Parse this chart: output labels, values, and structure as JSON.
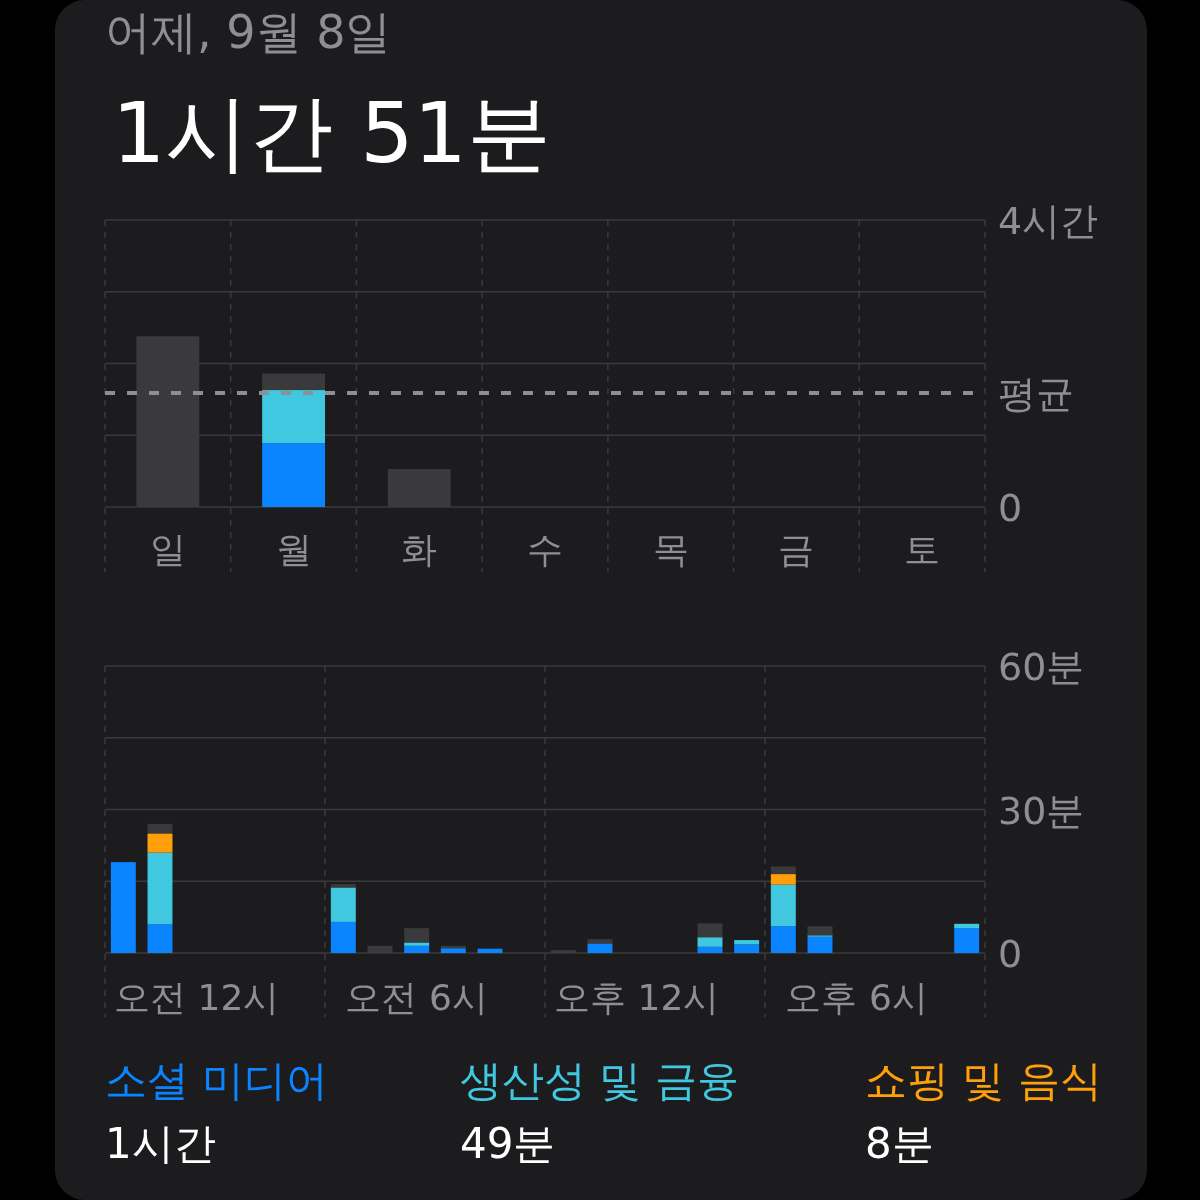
{
  "chart_data": [
    {
      "type": "bar",
      "subtitle": "어제, 9월 8일",
      "title": "1시간 51분",
      "stacked": true,
      "grid": true,
      "categories": [
        "일",
        "월",
        "화",
        "수",
        "목",
        "금",
        "토"
      ],
      "series": [
        {
          "color": "#0a84ff",
          "values": [
            null,
            0.89,
            null,
            null,
            null,
            null,
            null
          ]
        },
        {
          "color": "#40c8e0",
          "values": [
            null,
            0.74,
            null,
            null,
            null,
            null,
            null
          ]
        },
        {
          "color": "#3a3a3c",
          "values": [
            2.38,
            0.23,
            0.53,
            null,
            null,
            null,
            null
          ]
        }
      ],
      "ylim": [
        0,
        4
      ],
      "yticks": [
        0,
        {
          "value": 1,
          "label": null
        },
        {
          "value": 2,
          "label": null
        },
        {
          "value": 3,
          "label": null
        },
        {
          "value": 4,
          "label": "4시간"
        }
      ],
      "ref_lines": [
        {
          "axis": "y",
          "value": 1.59,
          "label": "평균",
          "color": "#8e8e93",
          "line_style": "dashed"
        }
      ]
    },
    {
      "type": "bar",
      "stacked": true,
      "grid": true,
      "legend": "bottom",
      "categories": [
        null,
        null,
        "오전 12시",
        null,
        null,
        null,
        null,
        null,
        "오전 6시",
        null,
        null,
        null,
        null,
        null,
        "오후 12시",
        null,
        null,
        null,
        null,
        null,
        "오후 6시",
        null,
        null,
        null
      ],
      "series": [
        {
          "name": "소셜 미디어",
          "color": "#0a84ff",
          "values": [
            19,
            6,
            null,
            null,
            null,
            null,
            6.5,
            null,
            1.5,
            1.0,
            0.9,
            null,
            null,
            2.0,
            null,
            null,
            1.3,
            1.8,
            5.6,
            3.4,
            null,
            null,
            null,
            5.2
          ]
        },
        {
          "name": "생산성 및 금융",
          "color": "#40c8e0",
          "values": [
            null,
            15,
            null,
            null,
            null,
            null,
            7.2,
            null,
            0.7,
            null,
            null,
            null,
            null,
            null,
            null,
            null,
            2.0,
            0.9,
            8.7,
            0.3,
            null,
            null,
            null,
            0.9
          ]
        },
        {
          "name": "쇼핑 및 음식",
          "color": "#ff9f0a",
          "values": [
            null,
            4,
            null,
            null,
            null,
            null,
            null,
            null,
            null,
            null,
            null,
            null,
            null,
            null,
            null,
            null,
            null,
            null,
            2.2,
            null,
            null,
            null,
            null,
            null
          ]
        },
        {
          "color": "#3a3a3c",
          "values": [
            null,
            2,
            null,
            null,
            null,
            null,
            0.7,
            1.5,
            3.0,
            0.5,
            null,
            null,
            0.6,
            0.9,
            null,
            null,
            2.9,
            null,
            1.6,
            1.9,
            null,
            null,
            null,
            null
          ]
        }
      ],
      "ylim": [
        0,
        60
      ],
      "yticks": [
        0,
        {
          "value": 15,
          "label": null
        },
        {
          "value": 30,
          "label": "30분"
        },
        {
          "value": 45,
          "label": null
        },
        {
          "value": 60,
          "label": "60분"
        }
      ],
      "annotations": [
        "1시간",
        "49분",
        "8분"
      ]
    }
  ]
}
